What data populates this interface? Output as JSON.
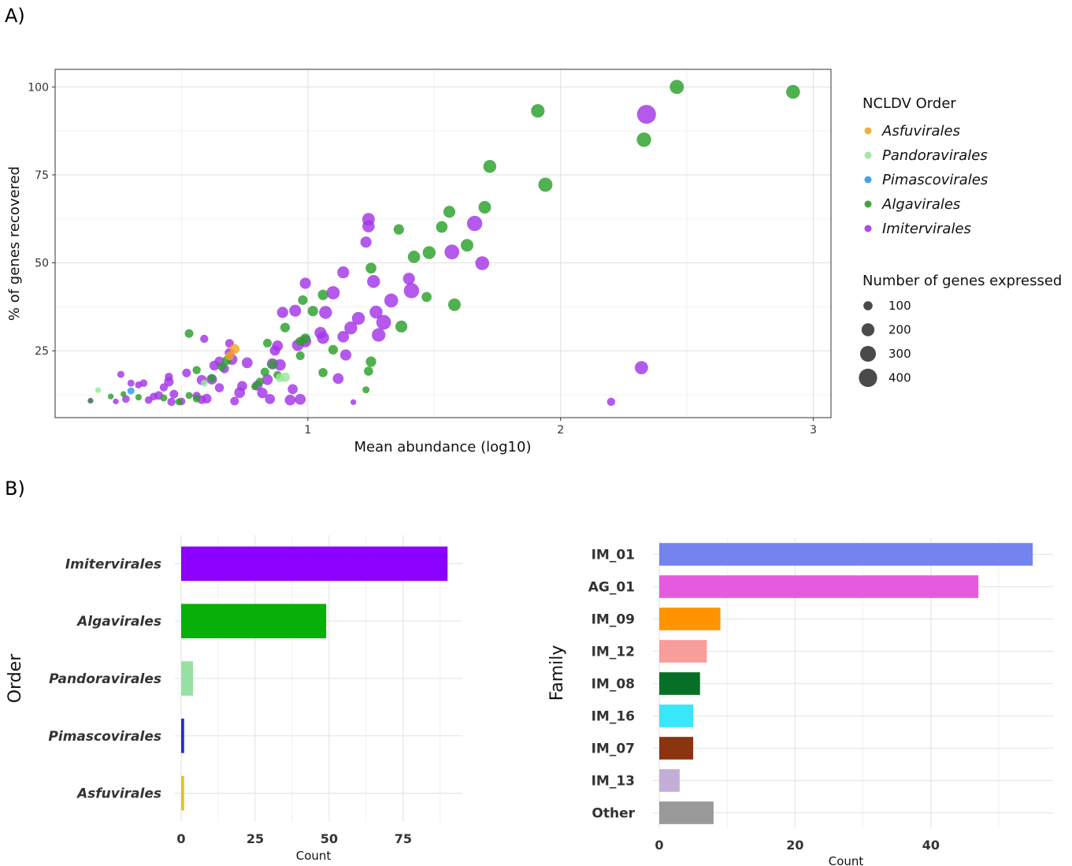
{
  "panels": {
    "a_label": "A)",
    "b_label": "B)"
  },
  "chart_data": [
    {
      "type": "scatter",
      "xlabel": "Mean abundance (log10)",
      "ylabel": "% of genes recovered",
      "xlim": [
        0.0,
        3.07
      ],
      "ylim": [
        6,
        105
      ],
      "x_ticks": [
        1,
        2,
        3
      ],
      "y_ticks": [
        25,
        50,
        75,
        100
      ],
      "grid": true,
      "legend_position": "right",
      "legend_color_title": "NCLDV Order",
      "legend_size_title": "Number of genes expressed",
      "size_legend_values": [
        100,
        200,
        300,
        400
      ],
      "order_legend": [
        "Asfuvirales",
        "Pandoravirales",
        "Pimascovirales",
        "Algavirales",
        "Imitervirales"
      ],
      "series": [
        {
          "name": "Asfuvirales",
          "color": "#f5a623",
          "points": [
            [
              0.71,
              25.5,
              120
            ],
            [
              0.69,
              23.5,
              90
            ]
          ]
        },
        {
          "name": "Pandoravirales",
          "color": "#98e698",
          "points": [
            [
              0.17,
              13.8,
              40
            ],
            [
              0.59,
              15.8,
              60
            ],
            [
              0.91,
              17.5,
              110
            ],
            [
              0.89,
              17.3,
              90
            ]
          ]
        },
        {
          "name": "Pimascovirales",
          "color": "#2d9be0",
          "points": [
            [
              0.3,
              13.6,
              60
            ]
          ]
        },
        {
          "name": "Algavirales",
          "color": "#2aa02a",
          "points": [
            [
              0.14,
              10.9,
              30
            ],
            [
              0.22,
              12.0,
              40
            ],
            [
              0.27,
              12.7,
              40
            ],
            [
              0.33,
              11.8,
              50
            ],
            [
              0.43,
              11.6,
              60
            ],
            [
              0.49,
              10.5,
              60
            ],
            [
              0.53,
              12.3,
              60
            ],
            [
              0.56,
              11.4,
              70
            ],
            [
              0.56,
              19.5,
              80
            ],
            [
              0.53,
              29.9,
              90
            ],
            [
              0.62,
              17.2,
              80
            ],
            [
              0.66,
              20.5,
              90
            ],
            [
              0.68,
              22.3,
              100
            ],
            [
              0.79,
              14.8,
              60
            ],
            [
              0.81,
              16.2,
              80
            ],
            [
              0.83,
              19.0,
              90
            ],
            [
              0.84,
              27.2,
              90
            ],
            [
              0.86,
              21.1,
              100
            ],
            [
              0.88,
              18.1,
              80
            ],
            [
              0.91,
              31.6,
              110
            ],
            [
              0.97,
              23.6,
              90
            ],
            [
              0.97,
              27.7,
              100
            ],
            [
              0.99,
              28.5,
              120
            ],
            [
              0.98,
              39.4,
              110
            ],
            [
              1.02,
              36.3,
              130
            ],
            [
              1.06,
              40.9,
              130
            ],
            [
              1.06,
              18.8,
              100
            ],
            [
              1.1,
              25.3,
              110
            ],
            [
              1.23,
              13.9,
              60
            ],
            [
              1.24,
              19.2,
              100
            ],
            [
              1.25,
              21.9,
              130
            ],
            [
              1.25,
              48.5,
              140
            ],
            [
              1.36,
              59.5,
              130
            ],
            [
              1.37,
              31.9,
              170
            ],
            [
              1.42,
              51.7,
              180
            ],
            [
              1.47,
              40.3,
              120
            ],
            [
              1.48,
              52.9,
              200
            ],
            [
              1.53,
              60.2,
              160
            ],
            [
              1.56,
              64.5,
              170
            ],
            [
              1.58,
              38.1,
              190
            ],
            [
              1.63,
              55.0,
              190
            ],
            [
              1.7,
              65.8,
              190
            ],
            [
              1.72,
              77.4,
              200
            ],
            [
              1.91,
              93.2,
              220
            ],
            [
              1.94,
              72.2,
              240
            ],
            [
              2.33,
              85.0,
              250
            ],
            [
              2.46,
              100.0,
              240
            ],
            [
              2.92,
              98.6,
              230
            ]
          ]
        },
        {
          "name": "Imitervirales",
          "color": "#a335e8",
          "points": [
            [
              0.14,
              10.8,
              40
            ],
            [
              0.24,
              10.6,
              40
            ],
            [
              0.26,
              18.3,
              60
            ],
            [
              0.28,
              11.3,
              70
            ],
            [
              0.3,
              15.8,
              60
            ],
            [
              0.33,
              15.3,
              60
            ],
            [
              0.35,
              15.8,
              70
            ],
            [
              0.37,
              11.0,
              70
            ],
            [
              0.39,
              12.0,
              70
            ],
            [
              0.41,
              12.3,
              90
            ],
            [
              0.43,
              14.6,
              80
            ],
            [
              0.45,
              16.2,
              110
            ],
            [
              0.45,
              17.6,
              80
            ],
            [
              0.46,
              10.5,
              80
            ],
            [
              0.47,
              12.7,
              90
            ],
            [
              0.5,
              10.6,
              70
            ],
            [
              0.52,
              18.7,
              90
            ],
            [
              0.56,
              12.2,
              80
            ],
            [
              0.58,
              11.1,
              90
            ],
            [
              0.58,
              16.7,
              120
            ],
            [
              0.59,
              28.4,
              80
            ],
            [
              0.6,
              11.4,
              110
            ],
            [
              0.62,
              16.9,
              130
            ],
            [
              0.63,
              20.8,
              120
            ],
            [
              0.65,
              14.5,
              100
            ],
            [
              0.65,
              22.0,
              110
            ],
            [
              0.67,
              19.9,
              100
            ],
            [
              0.69,
              24.4,
              110
            ],
            [
              0.69,
              27.1,
              90
            ],
            [
              0.7,
              22.5,
              140
            ],
            [
              0.71,
              10.7,
              90
            ],
            [
              0.73,
              13.1,
              140
            ],
            [
              0.74,
              15.0,
              120
            ],
            [
              0.76,
              21.6,
              140
            ],
            [
              0.8,
              15.1,
              120
            ],
            [
              0.82,
              13.0,
              130
            ],
            [
              0.84,
              16.8,
              140
            ],
            [
              0.85,
              11.3,
              120
            ],
            [
              0.86,
              21.3,
              150
            ],
            [
              0.87,
              25.1,
              130
            ],
            [
              0.88,
              26.4,
              140
            ],
            [
              0.89,
              21.0,
              160
            ],
            [
              0.9,
              35.9,
              150
            ],
            [
              0.93,
              11.0,
              140
            ],
            [
              0.94,
              14.1,
              120
            ],
            [
              0.95,
              36.4,
              170
            ],
            [
              0.96,
              26.6,
              160
            ],
            [
              0.97,
              11.2,
              140
            ],
            [
              0.99,
              27.7,
              170
            ],
            [
              0.99,
              44.2,
              150
            ],
            [
              1.05,
              30.1,
              170
            ],
            [
              1.06,
              28.7,
              180
            ],
            [
              1.07,
              35.9,
              200
            ],
            [
              1.1,
              41.5,
              210
            ],
            [
              1.12,
              17.1,
              140
            ],
            [
              1.14,
              47.3,
              170
            ],
            [
              1.14,
              29.0,
              160
            ],
            [
              1.15,
              23.8,
              150
            ],
            [
              1.17,
              31.5,
              200
            ],
            [
              1.18,
              10.4,
              40
            ],
            [
              1.2,
              34.2,
              200
            ],
            [
              1.23,
              55.9,
              150
            ],
            [
              1.24,
              62.4,
              190
            ],
            [
              1.24,
              60.4,
              180
            ],
            [
              1.26,
              44.7,
              200
            ],
            [
              1.27,
              36.0,
              200
            ],
            [
              1.28,
              29.5,
              220
            ],
            [
              1.3,
              33.1,
              260
            ],
            [
              1.33,
              39.3,
              230
            ],
            [
              1.4,
              45.5,
              170
            ],
            [
              1.41,
              42.1,
              280
            ],
            [
              1.57,
              53.1,
              260
            ],
            [
              1.66,
              61.2,
              280
            ],
            [
              1.69,
              49.9,
              230
            ],
            [
              2.2,
              10.5,
              80
            ],
            [
              2.32,
              20.2,
              210
            ],
            [
              2.34,
              92.2,
              430
            ]
          ]
        }
      ]
    },
    {
      "type": "bar",
      "orientation": "horizontal",
      "categories": [
        "Imitervirales",
        "Algavirales",
        "Pandoravirales",
        "Pimascovirales",
        "Asfuvirales"
      ],
      "values": [
        90,
        49,
        4,
        1,
        1
      ],
      "colors": [
        "#8c00ff",
        "#06b006",
        "#98e1a4",
        "#1c2de2",
        "#e6c21c"
      ],
      "xlabel": "Count",
      "ylabel": "Order",
      "x_ticks": [
        0,
        25,
        50,
        75
      ],
      "xlim": [
        0,
        95
      ],
      "grid": true
    },
    {
      "type": "bar",
      "orientation": "horizontal",
      "categories": [
        "IM_01",
        "AG_01",
        "IM_09",
        "IM_12",
        "IM_08",
        "IM_16",
        "IM_07",
        "IM_13",
        "Other"
      ],
      "values": [
        55,
        47,
        9,
        7,
        6,
        5,
        5,
        3,
        8
      ],
      "colors": [
        "#7383f0",
        "#e65ae0",
        "#ff9400",
        "#f99d9a",
        "#067027",
        "#38e7f9",
        "#8a3510",
        "#c3aed8",
        "#9a9a9a"
      ],
      "xlabel": "Count",
      "ylabel": "Family",
      "x_ticks": [
        0,
        20,
        40
      ],
      "xlim": [
        0,
        58
      ],
      "grid": true
    }
  ]
}
